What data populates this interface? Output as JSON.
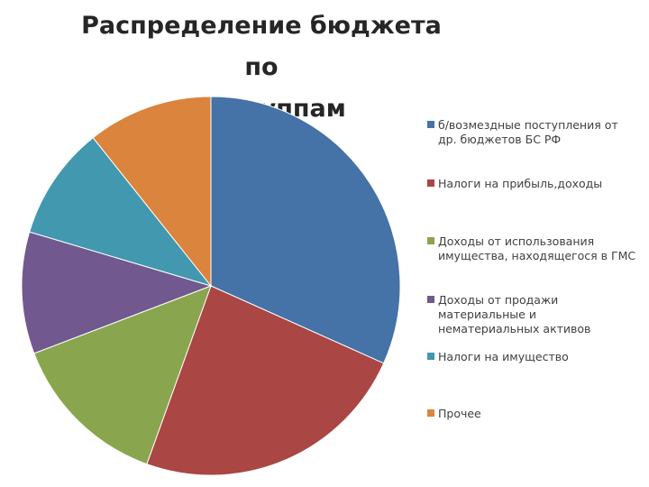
{
  "chart_data": {
    "type": "pie",
    "title": "Распределение бюджета по подгруппам",
    "title_lines": [
      "Распределение бюджета по",
      "подгруппам"
    ],
    "categories": [
      "б/возмездные поступления от др. бюджетов БС РФ",
      "Налоги на прибыль,доходы",
      "Доходы от использования имущества, находящегося в ГМС",
      "Доходы от продажи материальные и нематериальных активов",
      "Налоги на имущество",
      "Прочее"
    ],
    "label_lines": [
      [
        "б/возмездные поступления от",
        "др. бюджетов БС РФ"
      ],
      [
        "Налоги на прибыль,доходы"
      ],
      [
        "Доходы от использования",
        "имущества, находящегося в ГМС"
      ],
      [
        "Доходы от продажи",
        "материальные и",
        "нематериальных активов"
      ],
      [
        "Налоги на имущество"
      ],
      [
        "Прочее"
      ]
    ],
    "values": [
      31.7,
      23.8,
      13.7,
      10.4,
      9.7,
      10.7
    ],
    "colors": [
      "#4572A7",
      "#AA4643",
      "#89A54E",
      "#71588F",
      "#4198AF",
      "#DB843D"
    ],
    "legend_position": "right"
  }
}
